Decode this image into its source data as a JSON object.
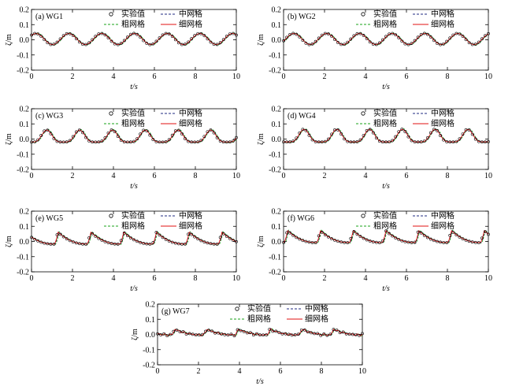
{
  "figure": {
    "legend_labels": {
      "experiment": "实验值",
      "medium": "中网格",
      "coarse": "粗网格",
      "fine": "细网格"
    },
    "colors": {
      "experiment": "#000000",
      "medium": "#1f2a80",
      "coarse": "#19a319",
      "fine": "#e01010"
    }
  },
  "chart_data": [
    {
      "type": "line",
      "title": "(a) WG1",
      "xlabel": "t/s",
      "ylabel": "ζ/m",
      "xlim": [
        0,
        10
      ],
      "ylim": [
        -0.2,
        0.2
      ],
      "xticks": [
        "0",
        "2",
        "4",
        "6",
        "8",
        "10"
      ],
      "yticks": [
        "-0.2",
        "-0.1",
        "0.0",
        "0.1",
        "0.2"
      ],
      "wave": {
        "amplitude": 0.037,
        "offset": 0.005,
        "period": 1.6,
        "crest_time": 0.22,
        "shape": "sine"
      },
      "series": [
        {
          "name": "实验值",
          "style": "circles"
        },
        {
          "name": "中网格",
          "style": "dashed"
        },
        {
          "name": "粗网格",
          "style": "dashed"
        },
        {
          "name": "细网格",
          "style": "solid"
        }
      ]
    },
    {
      "type": "line",
      "title": "(b) WG2",
      "xlabel": "t/s",
      "ylabel": "ζ/m",
      "xlim": [
        0,
        10
      ],
      "ylim": [
        -0.2,
        0.2
      ],
      "xticks": [
        "0",
        "2",
        "4",
        "6",
        "8",
        "10"
      ],
      "yticks": [
        "-0.2",
        "-0.1",
        "0.0",
        "0.1",
        "0.2"
      ],
      "wave": {
        "amplitude": 0.037,
        "offset": 0.005,
        "period": 1.6,
        "crest_time": 0.5,
        "shape": "sine"
      },
      "series": [
        {
          "name": "实验值",
          "style": "circles"
        },
        {
          "name": "中网格",
          "style": "dashed"
        },
        {
          "name": "粗网格",
          "style": "dashed"
        },
        {
          "name": "细网格",
          "style": "solid"
        }
      ]
    },
    {
      "type": "line",
      "title": "(c) WG3",
      "xlabel": "t/s",
      "ylabel": "ζ/m",
      "xlim": [
        0,
        10
      ],
      "ylim": [
        -0.2,
        0.2
      ],
      "xticks": [
        "0",
        "2",
        "4",
        "6",
        "8",
        "10"
      ],
      "yticks": [
        "-0.2",
        "-0.1",
        "0.0",
        "0.1",
        "0.2"
      ],
      "wave": {
        "amplitude": 0.04,
        "offset": 0.01,
        "period": 1.6,
        "crest_time": 0.75,
        "shape": "cnoidal"
      },
      "series": [
        {
          "name": "实验值",
          "style": "circles"
        },
        {
          "name": "中网格",
          "style": "dashed"
        },
        {
          "name": "粗网格",
          "style": "dashed"
        },
        {
          "name": "细网格",
          "style": "solid"
        }
      ]
    },
    {
      "type": "line",
      "title": "(d) WG4",
      "xlabel": "t/s",
      "ylabel": "ζ/m",
      "xlim": [
        0,
        10
      ],
      "ylim": [
        -0.2,
        0.2
      ],
      "xticks": [
        "0",
        "2",
        "4",
        "6",
        "8",
        "10"
      ],
      "yticks": [
        "-0.2",
        "-0.1",
        "0.0",
        "0.1",
        "0.2"
      ],
      "wave": {
        "amplitude": 0.042,
        "offset": 0.012,
        "period": 1.6,
        "crest_time": 1.0,
        "shape": "cnoidal"
      },
      "series": [
        {
          "name": "实验值",
          "style": "circles"
        },
        {
          "name": "中网格",
          "style": "dashed"
        },
        {
          "name": "粗网格",
          "style": "dashed"
        },
        {
          "name": "细网格",
          "style": "solid"
        }
      ]
    },
    {
      "type": "line",
      "title": "(e) WG5",
      "xlabel": "t/s",
      "ylabel": "ζ/m",
      "xlim": [
        0,
        10
      ],
      "ylim": [
        -0.2,
        0.2
      ],
      "xticks": [
        "0",
        "2",
        "4",
        "6",
        "8",
        "10"
      ],
      "yticks": [
        "-0.2",
        "-0.1",
        "0.0",
        "0.1",
        "0.2"
      ],
      "wave": {
        "amplitude": 0.047,
        "offset": 0.015,
        "period": 1.6,
        "crest_time": 1.3,
        "shape": "sawtooth"
      },
      "series": [
        {
          "name": "实验值",
          "style": "circles"
        },
        {
          "name": "中网格",
          "style": "dashed"
        },
        {
          "name": "粗网格",
          "style": "dashed"
        },
        {
          "name": "细网格",
          "style": "solid"
        }
      ]
    },
    {
      "type": "line",
      "title": "(f) WG6",
      "xlabel": "t/s",
      "ylabel": "ζ/m",
      "xlim": [
        0,
        10
      ],
      "ylim": [
        -0.2,
        0.2
      ],
      "xticks": [
        "0",
        "2",
        "4",
        "6",
        "8",
        "10"
      ],
      "yticks": [
        "-0.2",
        "-0.1",
        "0.0",
        "0.1",
        "0.2"
      ],
      "wave": {
        "amplitude": 0.047,
        "offset": 0.025,
        "period": 1.6,
        "crest_time": 0.2,
        "shape": "sawtooth"
      },
      "series": [
        {
          "name": "实验值",
          "style": "circles"
        },
        {
          "name": "中网格",
          "style": "dashed"
        },
        {
          "name": "粗网格",
          "style": "dashed"
        },
        {
          "name": "细网格",
          "style": "solid"
        }
      ]
    },
    {
      "type": "line",
      "title": "(g) WG7",
      "xlabel": "t/s",
      "ylabel": "ζ/m",
      "xlim": [
        0,
        10
      ],
      "ylim": [
        -0.2,
        0.2
      ],
      "xticks": [
        "0",
        "2",
        "4",
        "6",
        "8",
        "10"
      ],
      "yticks": [
        "-0.2",
        "-0.1",
        "0.0",
        "0.1",
        "0.2"
      ],
      "wave": {
        "amplitude": 0.022,
        "offset": 0.012,
        "period": 1.55,
        "crest_time": 0.85,
        "shape": "sawtooth",
        "noisy": true
      },
      "series": [
        {
          "name": "实验值",
          "style": "circles"
        },
        {
          "name": "中网格",
          "style": "dashed"
        },
        {
          "name": "粗网格",
          "style": "dashed"
        },
        {
          "name": "细网格",
          "style": "solid"
        }
      ]
    }
  ]
}
